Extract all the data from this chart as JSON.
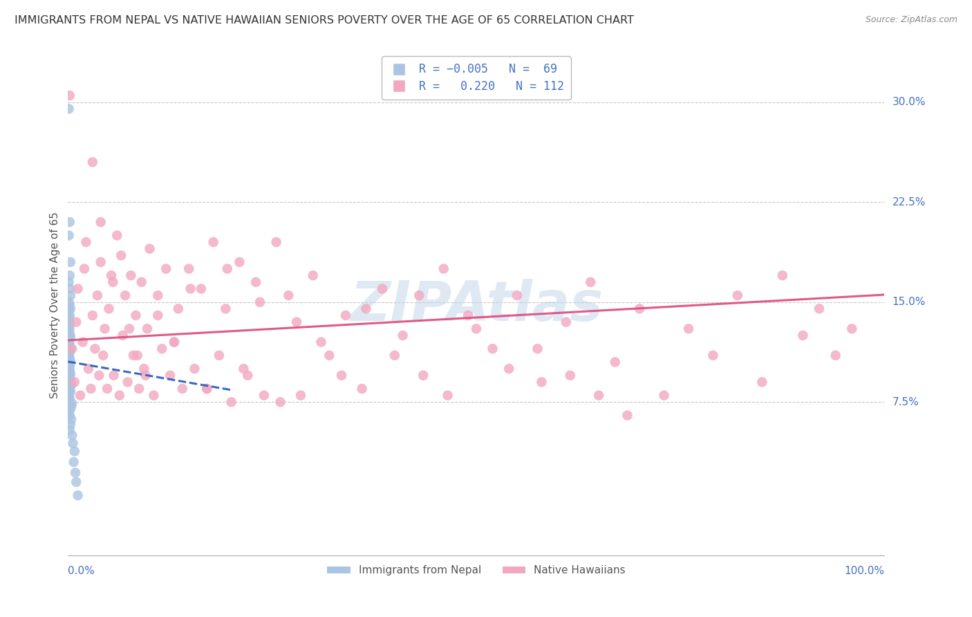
{
  "title": "IMMIGRANTS FROM NEPAL VS NATIVE HAWAIIAN SENIORS POVERTY OVER THE AGE OF 65 CORRELATION CHART",
  "source": "Source: ZipAtlas.com",
  "ylabel": "Seniors Poverty Over the Age of 65",
  "ytick_labels": [
    "7.5%",
    "15.0%",
    "22.5%",
    "30.0%"
  ],
  "ytick_values": [
    0.075,
    0.15,
    0.225,
    0.3
  ],
  "xlim": [
    0.0,
    1.0
  ],
  "ylim": [
    -0.04,
    0.335
  ],
  "background_color": "#ffffff",
  "grid_color": "#c8c8c8",
  "nepal_color": "#aac4e2",
  "hawaii_color": "#f2a8c0",
  "nepal_line_color": "#3060c0",
  "hawaii_line_color": "#e05080",
  "R_nepal": -0.005,
  "R_hawaii": 0.22,
  "N_nepal": 69,
  "N_hawaii": 112,
  "nepal_scatter_x": [
    0.001,
    0.002,
    0.001,
    0.003,
    0.002,
    0.001,
    0.002,
    0.003,
    0.001,
    0.002,
    0.003,
    0.001,
    0.002,
    0.001,
    0.002,
    0.001,
    0.002,
    0.001,
    0.002,
    0.003,
    0.001,
    0.002,
    0.001,
    0.002,
    0.003,
    0.001,
    0.002,
    0.001,
    0.002,
    0.001,
    0.002,
    0.003,
    0.001,
    0.002,
    0.001,
    0.002,
    0.001,
    0.002,
    0.003,
    0.001,
    0.002,
    0.001,
    0.003,
    0.002,
    0.001,
    0.004,
    0.003,
    0.002,
    0.001,
    0.003,
    0.002,
    0.001,
    0.002,
    0.001,
    0.005,
    0.004,
    0.003,
    0.001,
    0.002,
    0.004,
    0.003,
    0.002,
    0.005,
    0.006,
    0.008,
    0.007,
    0.009,
    0.01,
    0.012
  ],
  "nepal_scatter_y": [
    0.295,
    0.21,
    0.2,
    0.18,
    0.17,
    0.165,
    0.16,
    0.155,
    0.15,
    0.148,
    0.145,
    0.143,
    0.14,
    0.138,
    0.135,
    0.133,
    0.13,
    0.128,
    0.126,
    0.124,
    0.122,
    0.12,
    0.118,
    0.116,
    0.115,
    0.113,
    0.112,
    0.11,
    0.108,
    0.107,
    0.106,
    0.105,
    0.103,
    0.102,
    0.1,
    0.099,
    0.098,
    0.097,
    0.096,
    0.095,
    0.094,
    0.093,
    0.092,
    0.091,
    0.09,
    0.088,
    0.087,
    0.086,
    0.085,
    0.083,
    0.082,
    0.08,
    0.078,
    0.076,
    0.074,
    0.072,
    0.07,
    0.068,
    0.065,
    0.062,
    0.058,
    0.054,
    0.05,
    0.044,
    0.038,
    0.03,
    0.022,
    0.015,
    0.005
  ],
  "hawaii_scatter_x": [
    0.002,
    0.005,
    0.008,
    0.01,
    0.012,
    0.015,
    0.018,
    0.02,
    0.022,
    0.025,
    0.028,
    0.03,
    0.033,
    0.036,
    0.038,
    0.04,
    0.043,
    0.045,
    0.048,
    0.05,
    0.053,
    0.056,
    0.06,
    0.063,
    0.067,
    0.07,
    0.073,
    0.077,
    0.08,
    0.083,
    0.087,
    0.09,
    0.093,
    0.097,
    0.1,
    0.105,
    0.11,
    0.115,
    0.12,
    0.125,
    0.13,
    0.135,
    0.14,
    0.148,
    0.155,
    0.163,
    0.17,
    0.178,
    0.185,
    0.193,
    0.2,
    0.21,
    0.22,
    0.23,
    0.24,
    0.255,
    0.27,
    0.285,
    0.3,
    0.32,
    0.34,
    0.36,
    0.385,
    0.41,
    0.435,
    0.46,
    0.49,
    0.52,
    0.55,
    0.58,
    0.61,
    0.64,
    0.67,
    0.7,
    0.73,
    0.76,
    0.79,
    0.82,
    0.85,
    0.875,
    0.9,
    0.92,
    0.94,
    0.96,
    0.03,
    0.04,
    0.055,
    0.065,
    0.075,
    0.085,
    0.095,
    0.11,
    0.13,
    0.15,
    0.17,
    0.195,
    0.215,
    0.235,
    0.26,
    0.28,
    0.31,
    0.335,
    0.365,
    0.4,
    0.43,
    0.465,
    0.5,
    0.54,
    0.575,
    0.615,
    0.65,
    0.685
  ],
  "hawaii_scatter_y": [
    0.305,
    0.115,
    0.09,
    0.135,
    0.16,
    0.08,
    0.12,
    0.175,
    0.195,
    0.1,
    0.085,
    0.14,
    0.115,
    0.155,
    0.095,
    0.18,
    0.11,
    0.13,
    0.085,
    0.145,
    0.17,
    0.095,
    0.2,
    0.08,
    0.125,
    0.155,
    0.09,
    0.17,
    0.11,
    0.14,
    0.085,
    0.165,
    0.1,
    0.13,
    0.19,
    0.08,
    0.155,
    0.115,
    0.175,
    0.095,
    0.12,
    0.145,
    0.085,
    0.175,
    0.1,
    0.16,
    0.085,
    0.195,
    0.11,
    0.145,
    0.075,
    0.18,
    0.095,
    0.165,
    0.08,
    0.195,
    0.155,
    0.08,
    0.17,
    0.11,
    0.14,
    0.085,
    0.16,
    0.125,
    0.095,
    0.175,
    0.14,
    0.115,
    0.155,
    0.09,
    0.135,
    0.165,
    0.105,
    0.145,
    0.08,
    0.13,
    0.11,
    0.155,
    0.09,
    0.17,
    0.125,
    0.145,
    0.11,
    0.13,
    0.255,
    0.21,
    0.165,
    0.185,
    0.13,
    0.11,
    0.095,
    0.14,
    0.12,
    0.16,
    0.085,
    0.175,
    0.1,
    0.15,
    0.075,
    0.135,
    0.12,
    0.095,
    0.145,
    0.11,
    0.155,
    0.08,
    0.13,
    0.1,
    0.115,
    0.095,
    0.08,
    0.065
  ]
}
